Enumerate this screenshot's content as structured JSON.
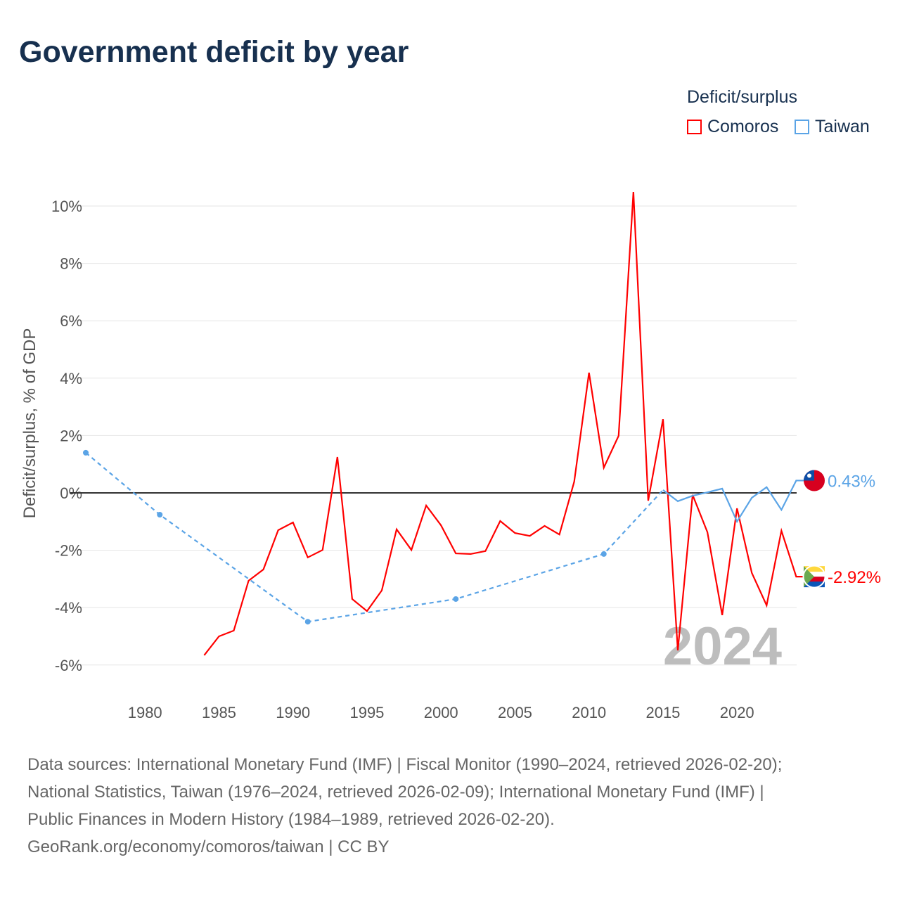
{
  "chart_data": {
    "type": "line",
    "title": "Government deficit by year",
    "ylabel": "Deficit/surplus, % of GDP",
    "xlabel": "",
    "xlim": [
      1976,
      2024
    ],
    "ylim": [
      -6.5,
      10.5
    ],
    "x_ticks": [
      1980,
      1985,
      1990,
      1995,
      2000,
      2005,
      2010,
      2015,
      2020
    ],
    "y_ticks": [
      -6,
      -4,
      -2,
      0,
      2,
      4,
      6,
      8,
      10
    ],
    "y_tick_labels": [
      "-6%",
      "-4%",
      "-2%",
      "0%",
      "2%",
      "4%",
      "6%",
      "8%",
      "10%"
    ],
    "grid": true,
    "legend_title": "Deficit/surplus",
    "legend_position": "top-right",
    "year_watermark": "2024",
    "series": [
      {
        "name": "Comoros",
        "color": "#ff0000",
        "x": [
          1984,
          1985,
          1986,
          1987,
          1988,
          1989,
          1990,
          1991,
          1992,
          1993,
          1994,
          1995,
          1996,
          1997,
          1998,
          1999,
          2000,
          2001,
          2002,
          2003,
          2004,
          2005,
          2006,
          2007,
          2008,
          2009,
          2010,
          2011,
          2012,
          2013,
          2014,
          2015,
          2016,
          2017,
          2018,
          2019,
          2020,
          2021,
          2022,
          2023,
          2024
        ],
        "values": [
          -5.66,
          -5.0,
          -4.8,
          -3.06,
          -2.67,
          -1.3,
          -1.03,
          -2.25,
          -1.99,
          1.25,
          -3.7,
          -4.12,
          -3.4,
          -1.27,
          -1.99,
          -0.44,
          -1.13,
          -2.11,
          -2.13,
          -2.03,
          -0.98,
          -1.4,
          -1.5,
          -1.15,
          -1.45,
          0.39,
          4.19,
          0.88,
          1.99,
          10.49,
          -0.27,
          2.57,
          -5.49,
          -0.07,
          -1.37,
          -4.26,
          -0.54,
          -2.79,
          -3.92,
          -1.32,
          -2.92
        ],
        "end_label": "-2.92%"
      },
      {
        "name": "Taiwan",
        "color": "#5ba4e6",
        "x": [
          1976,
          1981,
          1991,
          2001,
          2011,
          2015,
          2016,
          2017,
          2018,
          2019,
          2020,
          2021,
          2022,
          2023,
          2024
        ],
        "values": [
          1.4,
          -0.76,
          -4.49,
          -3.7,
          -2.13,
          0.1,
          -0.29,
          -0.1,
          0.02,
          0.15,
          -1.0,
          -0.17,
          0.2,
          -0.59,
          0.43
        ],
        "dashed_until": 2015,
        "end_label": "0.43%"
      }
    ]
  },
  "footer": {
    "line1": "Data sources: International Monetary Fund (IMF) | Fiscal Monitor (1990–2024, retrieved 2026-02-20);",
    "line2": "National Statistics, Taiwan (1976–2024, retrieved 2026-02-09); International Monetary Fund (IMF) |",
    "line3": "Public Finances in Modern History (1984–1989, retrieved 2026-02-20).",
    "line4": "GeoRank.org/economy/comoros/taiwan | CC BY"
  }
}
